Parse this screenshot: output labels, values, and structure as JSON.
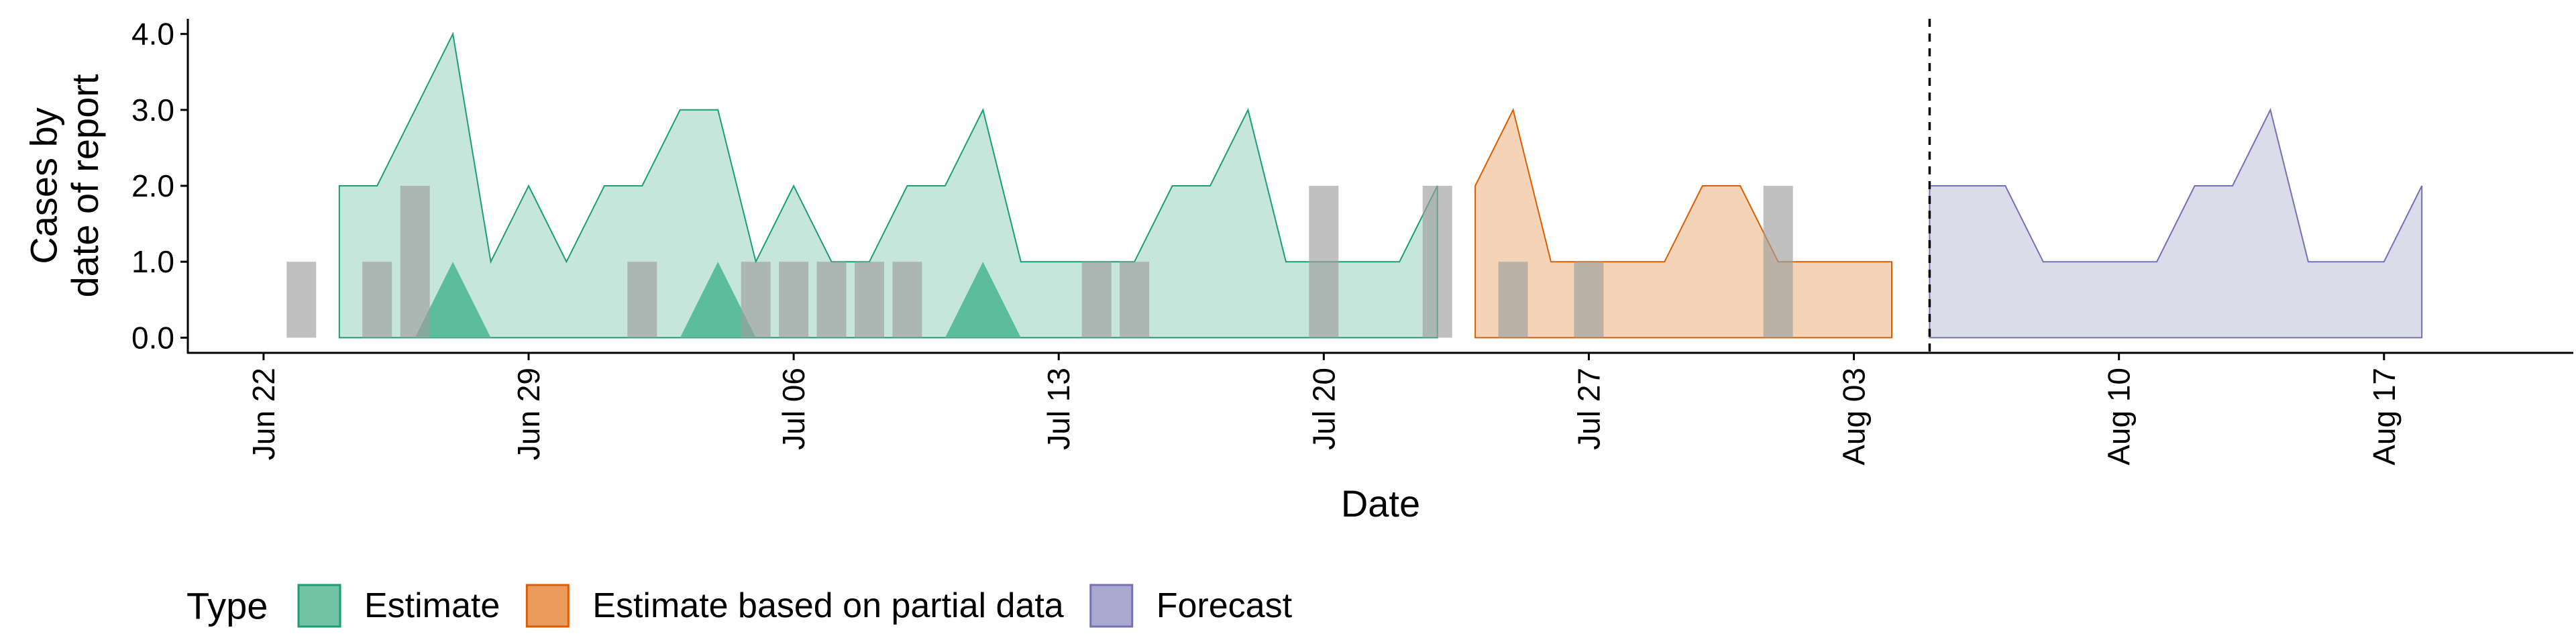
{
  "chart_data": {
    "type": "area",
    "xlabel": "Date",
    "ylabel": "Cases by\ndate of report",
    "ylim": [
      -0.2,
      4.2
    ],
    "yticks": [
      0.0,
      1.0,
      2.0,
      3.0,
      4.0
    ],
    "ytick_labels": [
      "0.0",
      "1.0",
      "2.0",
      "3.0",
      "4.0"
    ],
    "xlim": [
      "2020-06-20",
      "2020-08-22"
    ],
    "xticks": [
      "2020-06-22",
      "2020-06-29",
      "2020-07-06",
      "2020-07-13",
      "2020-07-20",
      "2020-07-27",
      "2020-08-03",
      "2020-08-10",
      "2020-08-17"
    ],
    "xtick_labels": [
      "Jun 22",
      "Jun 29",
      "Jul 06",
      "Jul 13",
      "Jul 20",
      "Jul 27",
      "Aug 03",
      "Aug 10",
      "Aug 17"
    ],
    "vline": "2020-08-05",
    "legend": {
      "title": "Type",
      "position": "bottom-left",
      "entries": [
        "Estimate",
        "Estimate based on partial data",
        "Forecast"
      ]
    },
    "colors": {
      "Estimate": {
        "fill": "#c6e6dc",
        "stroke": "#1b9e77",
        "key": "#72c3a6"
      },
      "Estimate based on partial data": {
        "fill": "#f4d3b7",
        "stroke": "#d95f02",
        "key": "#eb9b5c"
      },
      "Forecast": {
        "fill": "#dcdbea",
        "stroke": "#7570b3",
        "key": "#aaa7d1"
      },
      "inner": {
        "Estimate": "#5bbd9b",
        "Estimate based on partial data": "#eb9b5c"
      },
      "bars": "#9e9e9e"
    },
    "series": [
      {
        "name": "Estimate",
        "x": [
          "2020-06-24",
          "2020-06-25",
          "2020-06-26",
          "2020-06-27",
          "2020-06-28",
          "2020-06-29",
          "2020-06-30",
          "2020-07-01",
          "2020-07-02",
          "2020-07-03",
          "2020-07-04",
          "2020-07-05",
          "2020-07-06",
          "2020-07-07",
          "2020-07-08",
          "2020-07-09",
          "2020-07-10",
          "2020-07-11",
          "2020-07-12",
          "2020-07-13",
          "2020-07-14",
          "2020-07-15",
          "2020-07-16",
          "2020-07-17",
          "2020-07-18",
          "2020-07-19",
          "2020-07-20",
          "2020-07-21",
          "2020-07-22",
          "2020-07-23"
        ],
        "upper": [
          2,
          2,
          3,
          4,
          1,
          2,
          1,
          2,
          2,
          3,
          3,
          1,
          2,
          1,
          1,
          2,
          2,
          3,
          1,
          1,
          1,
          1,
          2,
          2,
          3,
          1,
          1,
          1,
          1,
          2
        ],
        "lower": [
          0,
          0,
          0,
          0,
          0,
          0,
          0,
          0,
          0,
          0,
          0,
          0,
          0,
          0,
          0,
          0,
          0,
          0,
          0,
          0,
          0,
          0,
          0,
          0,
          0,
          0,
          0,
          0,
          0,
          0
        ],
        "inner_upper": [
          0,
          0,
          0,
          1,
          0,
          0,
          0,
          0,
          0,
          0,
          1,
          0,
          0,
          0,
          0,
          0,
          0,
          1,
          0,
          0,
          0,
          0,
          0,
          0,
          0,
          0,
          0,
          0,
          0,
          0
        ]
      },
      {
        "name": "Estimate based on partial data",
        "x": [
          "2020-07-24",
          "2020-07-25",
          "2020-07-26",
          "2020-07-27",
          "2020-07-28",
          "2020-07-29",
          "2020-07-30",
          "2020-07-31",
          "2020-08-01",
          "2020-08-02",
          "2020-08-03",
          "2020-08-04"
        ],
        "upper": [
          2,
          3,
          1,
          1,
          1,
          1,
          2,
          2,
          1,
          1,
          1,
          1
        ],
        "lower": [
          0,
          0,
          0,
          0,
          0,
          0,
          0,
          0,
          0,
          0,
          0,
          0
        ]
      },
      {
        "name": "Forecast",
        "x": [
          "2020-08-05",
          "2020-08-06",
          "2020-08-07",
          "2020-08-08",
          "2020-08-09",
          "2020-08-10",
          "2020-08-11",
          "2020-08-12",
          "2020-08-13",
          "2020-08-14",
          "2020-08-15",
          "2020-08-16",
          "2020-08-17",
          "2020-08-18"
        ],
        "upper": [
          2,
          2,
          2,
          1,
          1,
          1,
          1,
          2,
          2,
          3,
          1,
          1,
          1,
          2
        ],
        "lower": [
          0,
          0,
          0,
          0,
          0,
          0,
          0,
          0,
          0,
          0,
          0,
          0,
          0,
          0
        ]
      }
    ],
    "reported_cases": {
      "x": [
        "2020-06-23",
        "2020-06-25",
        "2020-06-26",
        "2020-07-02",
        "2020-07-05",
        "2020-07-06",
        "2020-07-07",
        "2020-07-08",
        "2020-07-09",
        "2020-07-14",
        "2020-07-15",
        "2020-07-20",
        "2020-07-23",
        "2020-07-25",
        "2020-07-27",
        "2020-08-01"
      ],
      "values": [
        1,
        1,
        2,
        1,
        1,
        1,
        1,
        1,
        1,
        1,
        1,
        2,
        2,
        1,
        1,
        2
      ]
    }
  }
}
